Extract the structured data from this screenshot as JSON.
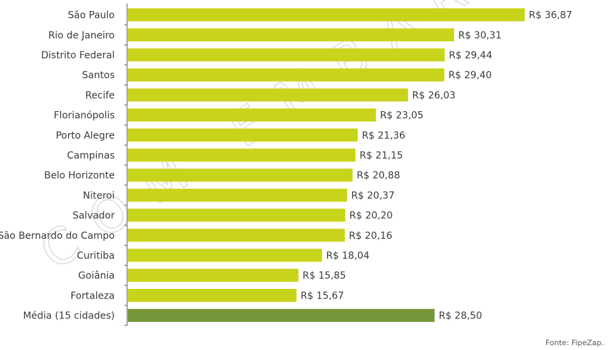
{
  "watermark": "COM EMBARGO",
  "source": "Fonte: FipeZap.",
  "colors": {
    "bar": "#c8d41c",
    "average_bar": "#76963a",
    "axis": "#555555"
  },
  "chart_data": {
    "type": "bar",
    "orientation": "horizontal",
    "value_prefix": "R$ ",
    "categories": [
      "São Paulo",
      "Rio de Janeiro",
      "Distrito Federal",
      "Santos",
      "Recife",
      "Florianópolis",
      "Porto Alegre",
      "Campinas",
      "Belo Horizonte",
      "Niteroi",
      "Salvador",
      "São Bernardo do Campo",
      "Curitiba",
      "Goiânia",
      "Fortaleza",
      "Média (15 cidades)"
    ],
    "values": [
      36.87,
      30.31,
      29.44,
      29.4,
      26.03,
      23.05,
      21.36,
      21.15,
      20.88,
      20.37,
      20.2,
      20.16,
      18.04,
      15.85,
      15.67,
      28.5
    ],
    "labels": [
      "R$ 36,87",
      "R$ 30,31",
      "R$ 29,44",
      "R$ 29,40",
      "R$ 26,03",
      "R$ 23,05",
      "R$ 21,36",
      "R$ 21,15",
      "R$ 20,88",
      "R$ 20,37",
      "R$ 20,20",
      "R$ 20,16",
      "R$ 18,04",
      "R$ 15,85",
      "R$ 15,67",
      "R$ 28,50"
    ],
    "highlight_index": 15,
    "xlim": [
      0,
      37
    ],
    "grid": false,
    "legend": "none"
  }
}
